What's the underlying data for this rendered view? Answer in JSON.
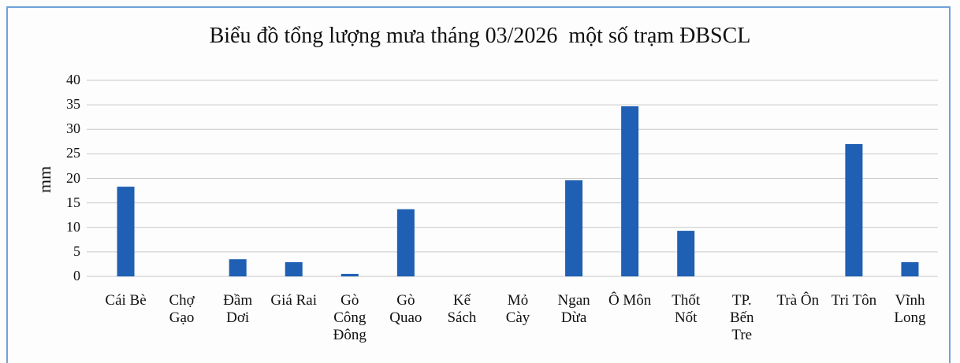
{
  "chart_data": {
    "type": "bar",
    "title": "Biểu đồ tổng lượng mưa tháng 03/2026  một số trạm ĐBSCL",
    "y_label": "mm",
    "categories": [
      "Cái Bè",
      "Chợ Gạo",
      "Đầm Dơi",
      "Giá Rai",
      "Gò Công Đông",
      "Gò Quao",
      "Kế Sách",
      "Mỏ Cày",
      "Ngan Dừa",
      "Ô Môn",
      "Thốt Nốt",
      "TP. Bến Tre",
      "Trà Ôn",
      "Tri Tôn",
      "Vĩnh Long"
    ],
    "values": [
      18.3,
      0,
      3.5,
      2.9,
      0.5,
      13.7,
      0,
      0,
      19.6,
      34.7,
      9.3,
      0,
      0,
      27,
      2.9
    ],
    "color": "#1f5fb4",
    "ylim": [
      0,
      40
    ],
    "yticks": [
      0,
      5,
      10,
      15,
      20,
      25,
      30,
      35,
      40
    ],
    "grid": true
  }
}
